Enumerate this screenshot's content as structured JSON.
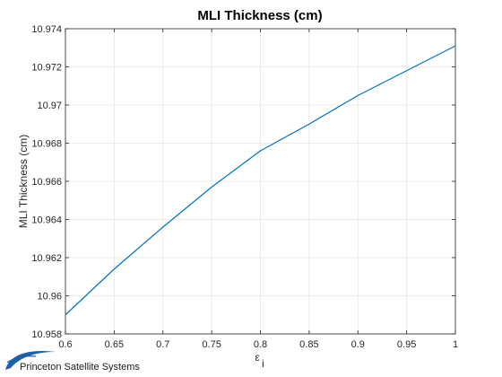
{
  "chart_data": {
    "type": "line",
    "title": "MLI Thickness (cm)",
    "xlabel": "ε",
    "xlabel_sub": "i",
    "ylabel": "MLI Thickness (cm)",
    "xlim": [
      0.6,
      1.0
    ],
    "ylim": [
      10.958,
      10.974
    ],
    "xticks": [
      "0.6",
      "0.65",
      "0.7",
      "0.75",
      "0.8",
      "0.85",
      "0.9",
      "0.95",
      "1"
    ],
    "yticks": [
      "10.958",
      "10.96",
      "10.962",
      "10.964",
      "10.966",
      "10.968",
      "10.97",
      "10.972",
      "10.974"
    ],
    "grid": true,
    "legend": "none",
    "series": [
      {
        "color": "#0072bd",
        "x": [
          0.6,
          0.65,
          0.7,
          0.75,
          0.8,
          0.85,
          0.9,
          0.95,
          1.0
        ],
        "y": [
          10.959,
          10.9614,
          10.9636,
          10.9657,
          10.9676,
          10.969,
          10.9705,
          10.9718,
          10.9731
        ]
      }
    ]
  },
  "footer": {
    "logo_text": "Princeton Satellite Systems"
  },
  "colors": {
    "line": "#0072bd",
    "grid": "#e6e6e6",
    "axes": "#262626",
    "logo_swoosh": "#1f5fa8"
  }
}
